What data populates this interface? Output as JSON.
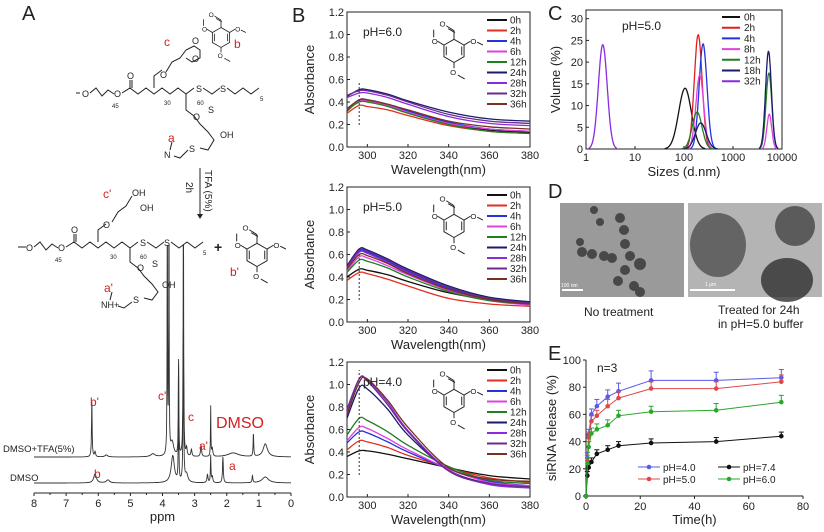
{
  "panel_labels": {
    "a": "A",
    "b": "B",
    "c": "C",
    "d": "D",
    "e": "E"
  },
  "scheme": {
    "top_labels": {
      "c": "c",
      "b": "b",
      "a": "a"
    },
    "bottom_labels": {
      "c_prime": "c'",
      "b_prime": "b'",
      "a_prime": "a'"
    },
    "atoms": {
      "o": "O",
      "s": "S",
      "oh": "OH",
      "n": "N",
      "nh_plus": "NH+",
      "plus": "+"
    },
    "subscripts": {
      "peg": "45",
      "block1": "30",
      "block2": "60",
      "alkyl": "5"
    },
    "reaction": {
      "reagent": "TFA (5%)",
      "time": "2h"
    }
  },
  "tem": {
    "left_caption": "No treatment",
    "left_scale": "100 nm",
    "right_caption_line1": "Treated for 24h",
    "right_caption_line2": "in pH=5.0 buffer",
    "right_scale": "1 μm"
  },
  "chart_data": [
    {
      "id": "nmr",
      "type": "line",
      "title": "",
      "xlabel": "ppm",
      "xlim": [
        8,
        0
      ],
      "xticks": [
        8,
        7,
        6,
        5,
        4,
        3,
        2,
        1,
        0
      ],
      "series": [
        {
          "name": "DMSO+TFA(5%)",
          "color": "#333333",
          "peaks": [
            [
              6.2,
              55,
              0.012
            ],
            [
              6.1,
              5,
              0.02
            ],
            [
              5.75,
              2,
              0.05
            ],
            [
              4.3,
              3,
              0.08
            ],
            [
              3.85,
              260,
              0.008
            ],
            [
              3.8,
              260,
              0.008
            ],
            [
              3.7,
              14,
              0.06
            ],
            [
              3.5,
              90,
              0.01
            ],
            [
              3.35,
              260,
              0.01
            ],
            [
              3.25,
              8,
              0.02
            ],
            [
              3.1,
              7,
              0.02
            ],
            [
              2.8,
              11,
              0.02
            ],
            [
              2.5,
              50,
              0.008
            ],
            [
              2.45,
              8,
              0.02
            ],
            [
              1.8,
              4,
              0.2
            ],
            [
              1.17,
              22,
              0.012
            ],
            [
              0.8,
              13,
              0.08
            ]
          ]
        },
        {
          "name": "DMSO",
          "color": "#333333",
          "peaks": [
            [
              6.1,
              9,
              0.05
            ],
            [
              5.7,
              3,
              0.06
            ],
            [
              3.68,
              27,
              0.06
            ],
            [
              3.5,
              120,
              0.008
            ],
            [
              3.35,
              150,
              0.012
            ],
            [
              3.25,
              8,
              0.05
            ],
            [
              2.6,
              8,
              0.02
            ],
            [
              2.5,
              27,
              0.01
            ],
            [
              2.45,
              6,
              0.02
            ],
            [
              2.12,
              26,
              0.015
            ],
            [
              1.2,
              7,
              0.015
            ],
            [
              0.8,
              6,
              0.12
            ]
          ]
        }
      ],
      "annotations": [
        {
          "text": "b'",
          "ppm": 6.2
        },
        {
          "text": "c'",
          "ppm": 3.85
        },
        {
          "text": "c",
          "ppm": 3.35
        },
        {
          "text": "a'",
          "ppm": 2.8
        },
        {
          "text": "DMSO",
          "ppm": 2.5
        },
        {
          "text": "a",
          "ppm": 2.1
        },
        {
          "text": "b",
          "ppm": 6.1
        }
      ]
    },
    {
      "id": "uv_ph6",
      "type": "line",
      "annotation": "pH=6.0",
      "xlabel": "Wavelength(nm)",
      "ylabel": "Absorbance",
      "xlim": [
        290,
        380
      ],
      "ylim": [
        0,
        1.2
      ],
      "xticks": [
        300,
        320,
        340,
        360,
        380
      ],
      "yticks": [
        0.0,
        0.2,
        0.4,
        0.6,
        0.8,
        1.0,
        1.2
      ],
      "x": [
        290,
        296,
        300,
        310,
        320,
        340,
        360,
        380
      ],
      "series": [
        {
          "name": "0h",
          "color": "#111111",
          "values": [
            0.32,
            0.41,
            0.41,
            0.37,
            0.31,
            0.21,
            0.15,
            0.13
          ]
        },
        {
          "name": "2h",
          "color": "#e03020",
          "values": [
            0.3,
            0.37,
            0.36,
            0.33,
            0.28,
            0.19,
            0.14,
            0.12
          ]
        },
        {
          "name": "4h",
          "color": "#2233dd",
          "values": [
            0.34,
            0.42,
            0.42,
            0.38,
            0.32,
            0.22,
            0.16,
            0.14
          ]
        },
        {
          "name": "6h",
          "color": "#e040e0",
          "values": [
            0.33,
            0.41,
            0.41,
            0.37,
            0.31,
            0.21,
            0.16,
            0.14
          ]
        },
        {
          "name": "12h",
          "color": "#208020",
          "values": [
            0.33,
            0.4,
            0.4,
            0.36,
            0.3,
            0.2,
            0.14,
            0.12
          ]
        },
        {
          "name": "24h",
          "color": "#1a1a6e",
          "values": [
            0.45,
            0.51,
            0.51,
            0.47,
            0.41,
            0.31,
            0.25,
            0.23
          ]
        },
        {
          "name": "28h",
          "color": "#8a2be2",
          "values": [
            0.44,
            0.48,
            0.48,
            0.44,
            0.38,
            0.27,
            0.21,
            0.19
          ]
        },
        {
          "name": "32h",
          "color": "#6a2c8a",
          "values": [
            0.46,
            0.5,
            0.5,
            0.46,
            0.4,
            0.29,
            0.23,
            0.21
          ]
        },
        {
          "name": "36h",
          "color": "#7a3020",
          "values": [
            0.34,
            0.42,
            0.42,
            0.38,
            0.33,
            0.23,
            0.18,
            0.16
          ]
        }
      ]
    },
    {
      "id": "uv_ph5",
      "type": "line",
      "annotation": "pH=5.0",
      "xlabel": "Wavelength(nm)",
      "ylabel": "Absorbance",
      "xlim": [
        290,
        380
      ],
      "ylim": [
        0,
        1.2
      ],
      "xticks": [
        300,
        320,
        340,
        360,
        380
      ],
      "yticks": [
        0.0,
        0.2,
        0.4,
        0.6,
        0.8,
        1.0,
        1.2
      ],
      "x": [
        290,
        296,
        300,
        310,
        320,
        340,
        360,
        380
      ],
      "series": [
        {
          "name": "0h",
          "color": "#111111",
          "values": [
            0.4,
            0.47,
            0.46,
            0.42,
            0.36,
            0.26,
            0.2,
            0.18
          ]
        },
        {
          "name": "2h",
          "color": "#e03020",
          "values": [
            0.37,
            0.44,
            0.43,
            0.38,
            0.32,
            0.21,
            0.16,
            0.14
          ]
        },
        {
          "name": "4h",
          "color": "#2233dd",
          "values": [
            0.48,
            0.63,
            0.62,
            0.54,
            0.45,
            0.3,
            0.21,
            0.17
          ]
        },
        {
          "name": "6h",
          "color": "#e040e0",
          "values": [
            0.45,
            0.58,
            0.57,
            0.5,
            0.42,
            0.28,
            0.19,
            0.15
          ]
        },
        {
          "name": "12h",
          "color": "#208020",
          "values": [
            0.44,
            0.55,
            0.54,
            0.48,
            0.4,
            0.27,
            0.19,
            0.16
          ]
        },
        {
          "name": "24h",
          "color": "#1a1a6e",
          "values": [
            0.5,
            0.65,
            0.64,
            0.56,
            0.47,
            0.32,
            0.22,
            0.18
          ]
        },
        {
          "name": "28h",
          "color": "#8a2be2",
          "values": [
            0.48,
            0.62,
            0.61,
            0.53,
            0.44,
            0.29,
            0.2,
            0.16
          ]
        },
        {
          "name": "32h",
          "color": "#6a2c8a",
          "values": [
            0.49,
            0.64,
            0.63,
            0.55,
            0.46,
            0.31,
            0.21,
            0.17
          ]
        },
        {
          "name": "36h",
          "color": "#7a3020",
          "values": [
            0.47,
            0.6,
            0.59,
            0.52,
            0.43,
            0.29,
            0.2,
            0.16
          ]
        }
      ]
    },
    {
      "id": "uv_ph4",
      "type": "line",
      "annotation": "pH=4.0",
      "xlabel": "Wavelength(nm)",
      "ylabel": "Absorbance",
      "xlim": [
        290,
        380
      ],
      "ylim": [
        0,
        1.2
      ],
      "xticks": [
        300,
        320,
        340,
        360,
        380
      ],
      "yticks": [
        0.0,
        0.2,
        0.4,
        0.6,
        0.8,
        1.0,
        1.2
      ],
      "x": [
        290,
        296,
        300,
        310,
        320,
        340,
        360,
        380
      ],
      "series": [
        {
          "name": "0h",
          "color": "#111111",
          "values": [
            0.36,
            0.41,
            0.41,
            0.38,
            0.34,
            0.26,
            0.19,
            0.16
          ]
        },
        {
          "name": "2h",
          "color": "#e03020",
          "values": [
            0.42,
            0.5,
            0.49,
            0.44,
            0.37,
            0.26,
            0.17,
            0.13
          ]
        },
        {
          "name": "4h",
          "color": "#2233dd",
          "values": [
            0.48,
            0.58,
            0.57,
            0.49,
            0.4,
            0.25,
            0.14,
            0.1
          ]
        },
        {
          "name": "6h",
          "color": "#e040e0",
          "values": [
            0.5,
            0.62,
            0.61,
            0.52,
            0.42,
            0.25,
            0.13,
            0.1
          ]
        },
        {
          "name": "12h",
          "color": "#208020",
          "values": [
            0.55,
            0.7,
            0.68,
            0.58,
            0.46,
            0.27,
            0.15,
            0.12
          ]
        },
        {
          "name": "24h",
          "color": "#1a1a6e",
          "values": [
            0.7,
            0.97,
            0.96,
            0.78,
            0.55,
            0.24,
            0.12,
            0.09
          ]
        },
        {
          "name": "28h",
          "color": "#8a2be2",
          "values": [
            0.75,
            1.05,
            1.04,
            0.84,
            0.59,
            0.24,
            0.11,
            0.08
          ]
        },
        {
          "name": "32h",
          "color": "#6a2c8a",
          "values": [
            0.78,
            1.05,
            1.03,
            0.82,
            0.58,
            0.23,
            0.12,
            0.09
          ]
        },
        {
          "name": "36h",
          "color": "#7a3020",
          "values": [
            0.73,
            1.02,
            1.05,
            0.86,
            0.62,
            0.26,
            0.16,
            0.14
          ]
        }
      ]
    },
    {
      "id": "dls",
      "type": "line",
      "annotation": "pH=5.0",
      "xlabel": "Sizes (d.nm)",
      "ylabel": "Volume (%)",
      "xscale": "log",
      "xlim": [
        1,
        10000
      ],
      "ylim": [
        0,
        32
      ],
      "xticks": [
        1,
        10,
        100,
        1000,
        10000
      ],
      "yticks": [
        0,
        5,
        10,
        15,
        20,
        25,
        30
      ],
      "series": [
        {
          "name": "0h",
          "color": "#111111",
          "peaks": [
            {
              "center_nm": 105,
              "volume_pct": 14,
              "width_log10": 0.13
            }
          ]
        },
        {
          "name": "2h",
          "color": "#e02020",
          "peaks": [
            {
              "center_nm": 195,
              "volume_pct": 26.3,
              "width_log10": 0.08
            }
          ]
        },
        {
          "name": "4h",
          "color": "#2233dd",
          "peaks": [
            {
              "center_nm": 245,
              "volume_pct": 24.2,
              "width_log10": 0.08
            }
          ]
        },
        {
          "name": "8h",
          "color": "#e040e0",
          "peaks": [
            {
              "center_nm": 210,
              "volume_pct": 17,
              "width_log10": 0.08
            },
            {
              "center_nm": 5500,
              "volume_pct": 8,
              "width_log10": 0.05
            }
          ]
        },
        {
          "name": "12h",
          "color": "#208020",
          "peaks": [
            {
              "center_nm": 185,
              "volume_pct": 8.5,
              "width_log10": 0.1
            },
            {
              "center_nm": 5400,
              "volume_pct": 17.5,
              "width_log10": 0.06
            }
          ]
        },
        {
          "name": "18h",
          "color": "#1a1a6e",
          "peaks": [
            {
              "center_nm": 220,
              "volume_pct": 6,
              "width_log10": 0.11
            },
            {
              "center_nm": 5300,
              "volume_pct": 22.5,
              "width_log10": 0.06
            }
          ]
        },
        {
          "name": "32h",
          "color": "#8a2be2",
          "peaks": [
            {
              "center_nm": 2.2,
              "volume_pct": 24,
              "width_log10": 0.09
            }
          ]
        }
      ]
    },
    {
      "id": "release",
      "type": "line",
      "annotation": "n=3",
      "xlabel": "Time(h)",
      "ylabel": "siRNA release (%)",
      "xlim": [
        0,
        80
      ],
      "ylim": [
        0,
        100
      ],
      "xticks": [
        0,
        20,
        40,
        60,
        80
      ],
      "yticks": [
        0,
        20,
        40,
        60,
        80,
        100
      ],
      "x": [
        0,
        0.5,
        1,
        2,
        4,
        8,
        12,
        24,
        48,
        72
      ],
      "series": [
        {
          "name": "pH=4.0",
          "color": "#5a5ae6",
          "values": [
            0,
            28,
            45,
            60,
            66,
            73,
            77,
            85,
            85,
            87
          ],
          "error": [
            0,
            4,
            4,
            4,
            5,
            5,
            6,
            7,
            6,
            6
          ]
        },
        {
          "name": "pH=5.0",
          "color": "#e04848",
          "values": [
            0,
            26,
            43,
            55,
            59,
            66,
            72,
            79,
            79,
            84
          ],
          "error": [
            0,
            4,
            4,
            4,
            4,
            5,
            5,
            5,
            5,
            5
          ]
        },
        {
          "name": "pH=7.4",
          "color": "#111111",
          "values": [
            0,
            15,
            21,
            25,
            31,
            34,
            37,
            39,
            40,
            44
          ],
          "error": [
            0,
            3,
            3,
            3,
            3,
            3,
            3,
            3,
            3,
            3
          ]
        },
        {
          "name": "pH=6.0",
          "color": "#28a828",
          "values": [
            0,
            24,
            36,
            46,
            49,
            52,
            59,
            62,
            63,
            69
          ],
          "error": [
            0,
            4,
            4,
            4,
            4,
            4,
            4,
            4,
            5,
            5
          ]
        }
      ]
    }
  ]
}
